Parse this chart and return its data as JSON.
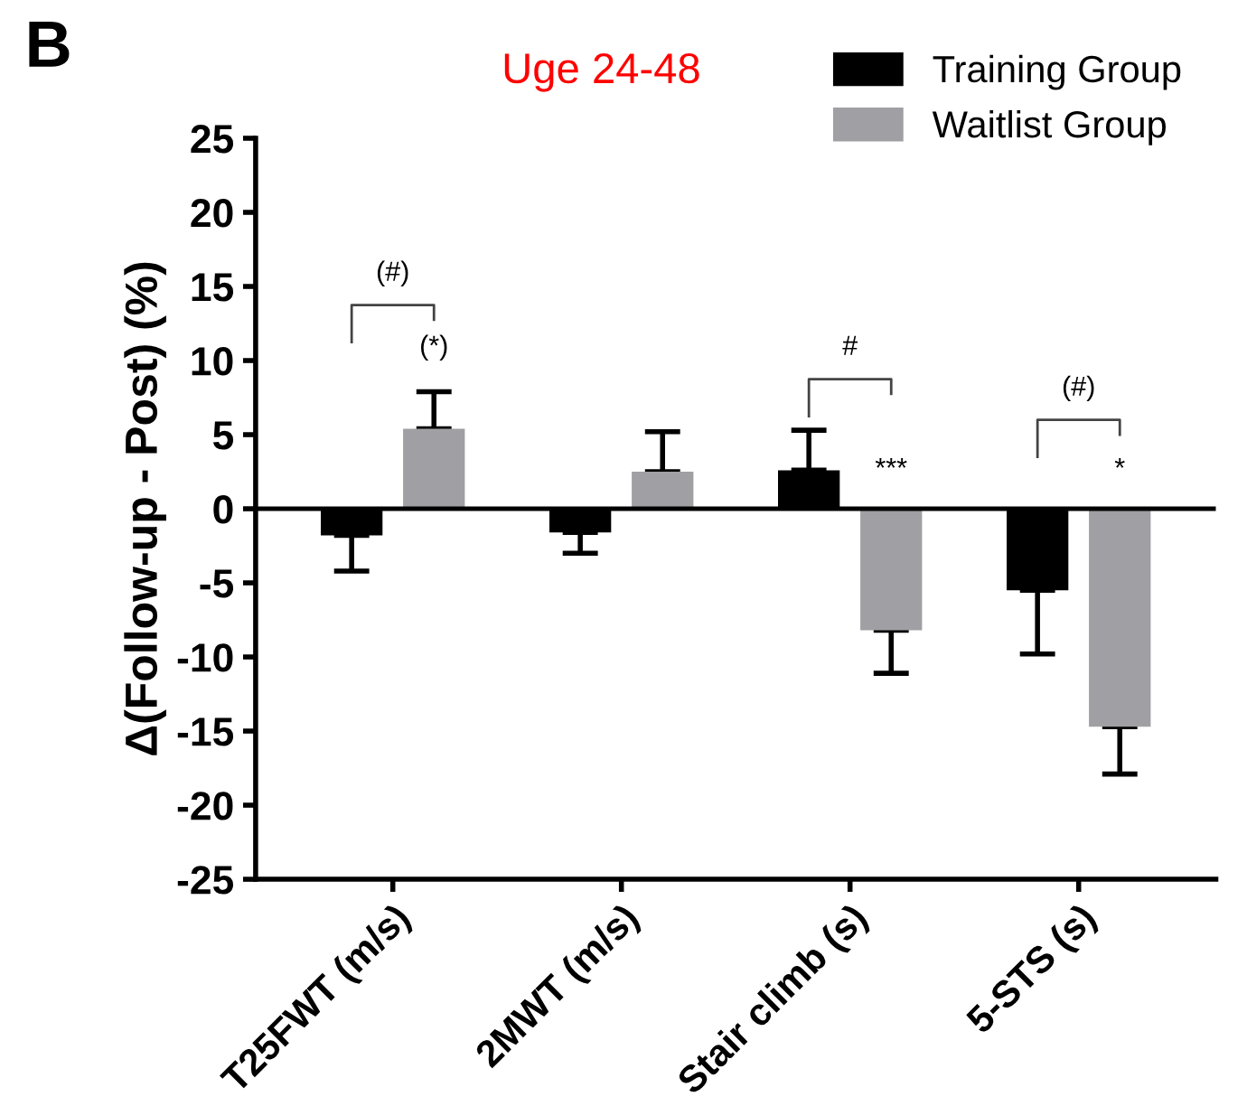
{
  "chart_data": {
    "type": "bar",
    "title": "Uge 24-48",
    "ylabel": "Δ(Follow-up - Post) (%)",
    "categories": [
      "T25FWT (m/s)",
      "2MWT (m/s)",
      "Stair climb (s)",
      "5-STS (s)"
    ],
    "series": [
      {
        "name": "Training Group",
        "color": "#000000",
        "values": [
          -1.8,
          -1.6,
          2.6,
          -5.5
        ],
        "errors": [
          [
            -4.2,
            -1.8
          ],
          [
            -3.0,
            -1.6
          ],
          [
            2.6,
            5.3
          ],
          [
            -9.8,
            -5.5
          ]
        ]
      },
      {
        "name": "Waitlist Group",
        "color": "#a0a0a4",
        "values": [
          5.4,
          2.5,
          -8.2,
          -14.7
        ],
        "errors": [
          [
            5.4,
            7.9
          ],
          [
            2.5,
            5.2
          ],
          [
            -11.1,
            -8.2
          ],
          [
            -17.9,
            -14.7
          ]
        ]
      }
    ],
    "ylim": [
      -25,
      25
    ],
    "yticks": [
      -25,
      -20,
      -15,
      -10,
      -5,
      0,
      5,
      10,
      15,
      20,
      25
    ],
    "ref_lines": [
      {
        "axis": "y",
        "value": 0,
        "color": "#000000"
      }
    ],
    "legend": "top right",
    "annotations": [
      "B",
      "(#)",
      "(*)",
      "#",
      "***",
      "(#)",
      "*"
    ]
  }
}
